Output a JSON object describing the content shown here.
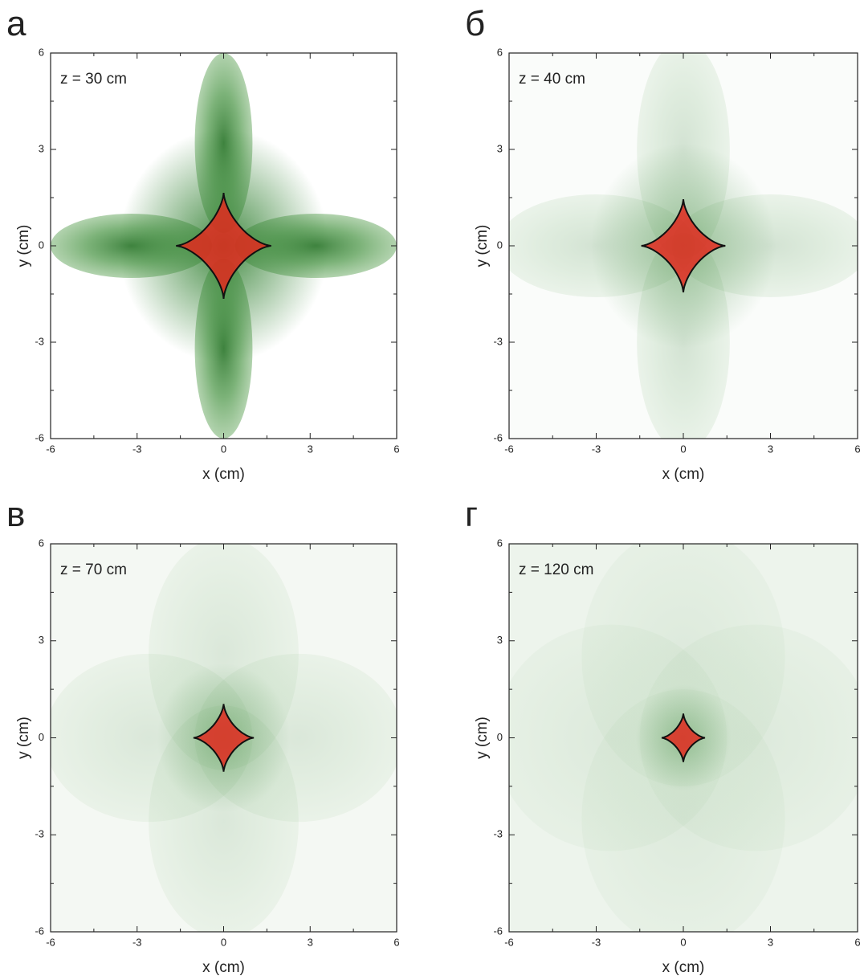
{
  "chart_data": [
    {
      "type": "scatter",
      "label": "а",
      "annotation": "z = 30 cm",
      "x_label": "x (cm)",
      "y_label": "y (cm)",
      "xlim": [
        -6,
        6
      ],
      "ylim": [
        -6,
        6
      ],
      "xticks": [
        -6,
        -3,
        0,
        3,
        6
      ],
      "yticks": [
        -6,
        -3,
        0,
        3,
        6
      ]
    },
    {
      "type": "scatter",
      "label": "б",
      "annotation": "z = 40 cm",
      "x_label": "x (cm)",
      "y_label": "y (cm)",
      "xlim": [
        -6,
        6
      ],
      "ylim": [
        -6,
        6
      ],
      "xticks": [
        -6,
        -3,
        0,
        3,
        6
      ],
      "yticks": [
        -6,
        -3,
        0,
        3,
        6
      ]
    },
    {
      "type": "scatter",
      "label": "в",
      "annotation": "z = 70 cm",
      "x_label": "x (cm)",
      "y_label": "y (cm)",
      "xlim": [
        -6,
        6
      ],
      "ylim": [
        -6,
        6
      ],
      "xticks": [
        -6,
        -3,
        0,
        3,
        6
      ],
      "yticks": [
        -6,
        -3,
        0,
        3,
        6
      ]
    },
    {
      "type": "scatter",
      "label": "г",
      "annotation": "z = 120 cm",
      "x_label": "x (cm)",
      "y_label": "y (cm)",
      "xlim": [
        -6,
        6
      ],
      "ylim": [
        -6,
        6
      ],
      "xticks": [
        -6,
        -3,
        0,
        3,
        6
      ],
      "yticks": [
        -6,
        -3,
        0,
        3,
        6
      ]
    }
  ]
}
